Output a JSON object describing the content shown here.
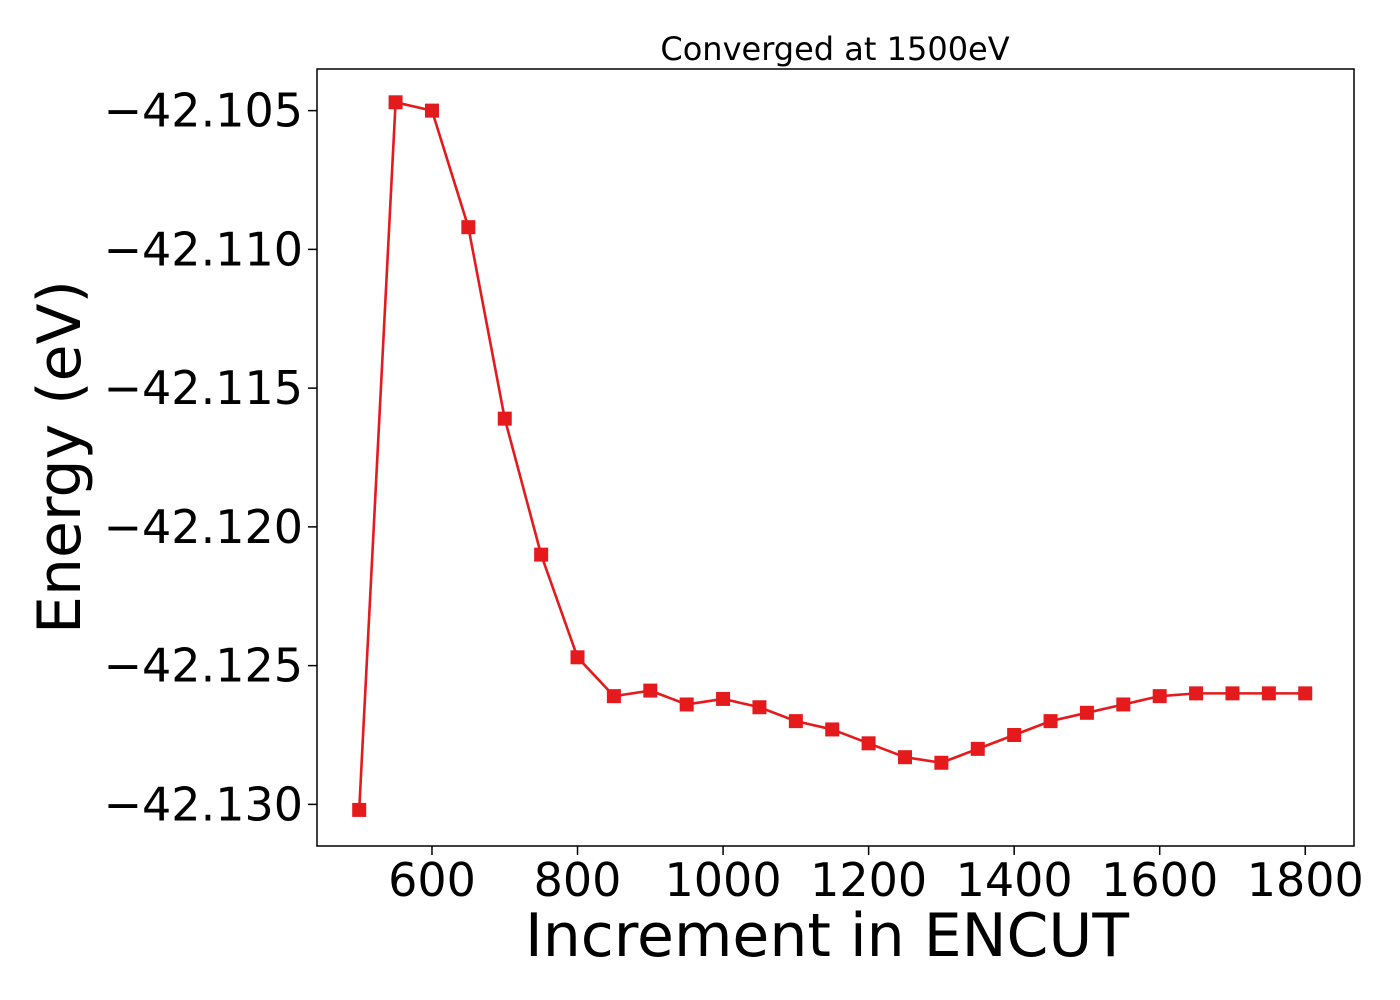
{
  "chart_data": {
    "type": "line",
    "title": "Converged at 1500eV",
    "xlabel": "Increment in ENCUT",
    "ylabel": "Energy (eV)",
    "xlim": [
      442,
      1867
    ],
    "ylim": [
      -42.1315,
      -42.1035
    ],
    "x_ticks": [
      600,
      800,
      1000,
      1200,
      1400,
      1600,
      1800
    ],
    "x_tick_labels": [
      "600",
      "800",
      "1000",
      "1200",
      "1400",
      "1600",
      "1800"
    ],
    "y_ticks": [
      -42.105,
      -42.11,
      -42.115,
      -42.12,
      -42.125,
      -42.13
    ],
    "y_tick_labels": [
      "−42.105",
      "−42.110",
      "−42.115",
      "−42.120",
      "−42.125",
      "−42.130"
    ],
    "grid": false,
    "marker": "square",
    "color": "#e41a1c",
    "series": [
      {
        "x": [
          500,
          550,
          600,
          650,
          700,
          750,
          800,
          850,
          900,
          950,
          1000,
          1050,
          1100,
          1150,
          1200,
          1250,
          1300,
          1350,
          1400,
          1450,
          1500,
          1550,
          1600,
          1650,
          1700,
          1750,
          1800
        ],
        "y": [
          -42.1302,
          -42.1047,
          -42.105,
          -42.1092,
          -42.1161,
          -42.121,
          -42.1247,
          -42.1261,
          -42.1259,
          -42.1264,
          -42.1262,
          -42.1265,
          -42.127,
          -42.1273,
          -42.1278,
          -42.1283,
          -42.1285,
          -42.128,
          -42.1275,
          -42.127,
          -42.1267,
          -42.1264,
          -42.1261,
          -42.126,
          -42.126,
          -42.126,
          -42.126
        ]
      }
    ]
  }
}
